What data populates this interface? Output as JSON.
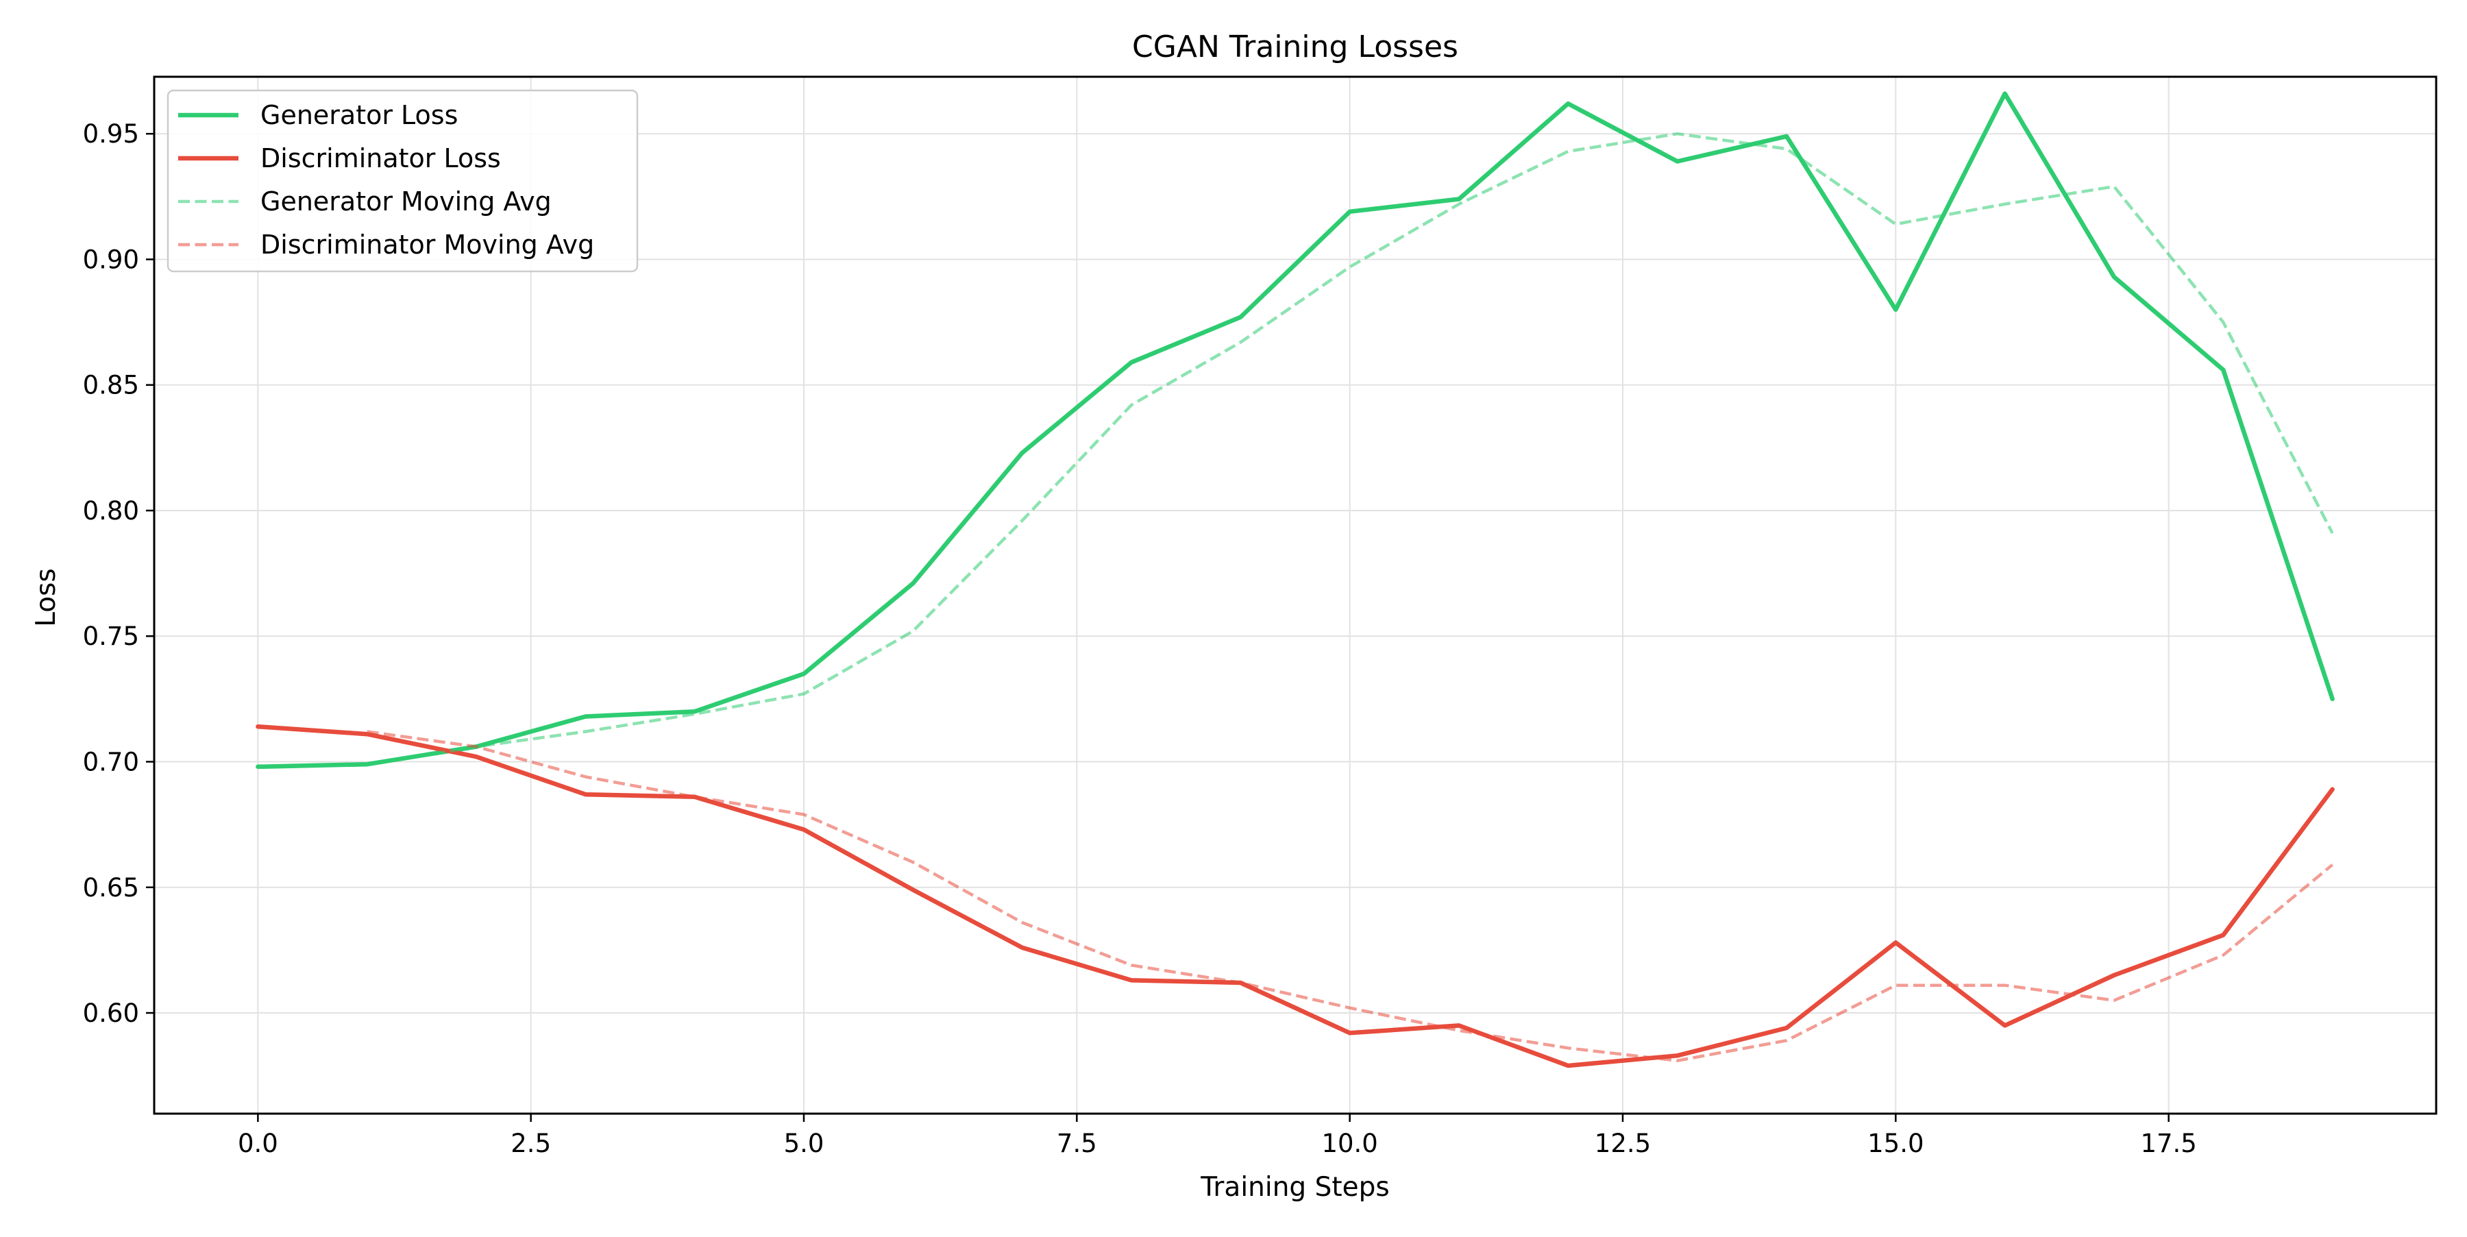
{
  "chart_data": {
    "type": "line",
    "title": "CGAN Training Losses",
    "xlabel": "Training Steps",
    "ylabel": "Loss",
    "xlim": [
      -0.95,
      19.95
    ],
    "ylim": [
      0.5599,
      0.9727
    ],
    "xticks": [
      0.0,
      2.5,
      5.0,
      7.5,
      10.0,
      12.5,
      15.0,
      17.5
    ],
    "xtick_labels": [
      "0.0",
      "2.5",
      "5.0",
      "7.5",
      "10.0",
      "12.5",
      "15.0",
      "17.5"
    ],
    "yticks": [
      0.6,
      0.65,
      0.7,
      0.75,
      0.8,
      0.85,
      0.9,
      0.95
    ],
    "ytick_labels": [
      "0.60",
      "0.65",
      "0.70",
      "0.75",
      "0.80",
      "0.85",
      "0.90",
      "0.95"
    ],
    "grid": true,
    "legend_position": "top-left",
    "series": [
      {
        "name": "Generator Loss",
        "color": "#2ecc71",
        "style": "solid",
        "x": [
          0,
          1,
          2,
          3,
          4,
          5,
          6,
          7,
          8,
          9,
          10,
          11,
          12,
          13,
          14,
          15,
          16,
          17,
          18,
          19
        ],
        "y": [
          0.698,
          0.699,
          0.706,
          0.718,
          0.72,
          0.735,
          0.771,
          0.823,
          0.859,
          0.877,
          0.919,
          0.924,
          0.962,
          0.939,
          0.949,
          0.88,
          0.966,
          0.893,
          0.856,
          0.725
        ]
      },
      {
        "name": "Discriminator Loss",
        "color": "#e74c3c",
        "style": "solid",
        "x": [
          0,
          1,
          2,
          3,
          4,
          5,
          6,
          7,
          8,
          9,
          10,
          11,
          12,
          13,
          14,
          15,
          16,
          17,
          18,
          19
        ],
        "y": [
          0.714,
          0.711,
          0.702,
          0.687,
          0.686,
          0.673,
          0.649,
          0.626,
          0.613,
          0.612,
          0.592,
          0.595,
          0.579,
          0.583,
          0.594,
          0.628,
          0.595,
          0.615,
          0.631,
          0.689
        ]
      },
      {
        "name": "Generator Moving Avg",
        "color": "#2ecc71",
        "style": "dashed",
        "x": [
          1,
          2,
          3,
          4,
          5,
          6,
          7,
          8,
          9,
          10,
          11,
          12,
          13,
          14,
          15,
          16,
          17,
          18,
          19
        ],
        "y": [
          0.699,
          0.706,
          0.712,
          0.719,
          0.727,
          0.752,
          0.796,
          0.842,
          0.867,
          0.897,
          0.922,
          0.943,
          0.95,
          0.944,
          0.914,
          0.922,
          0.929,
          0.875,
          0.791
        ]
      },
      {
        "name": "Discriminator Moving Avg",
        "color": "#e74c3c",
        "style": "dashed",
        "x": [
          1,
          2,
          3,
          4,
          5,
          6,
          7,
          8,
          9,
          10,
          11,
          12,
          13,
          14,
          15,
          16,
          17,
          18,
          19
        ],
        "y": [
          0.712,
          0.706,
          0.694,
          0.686,
          0.679,
          0.66,
          0.636,
          0.619,
          0.612,
          0.602,
          0.593,
          0.586,
          0.581,
          0.589,
          0.611,
          0.611,
          0.605,
          0.623,
          0.659
        ]
      }
    ]
  }
}
